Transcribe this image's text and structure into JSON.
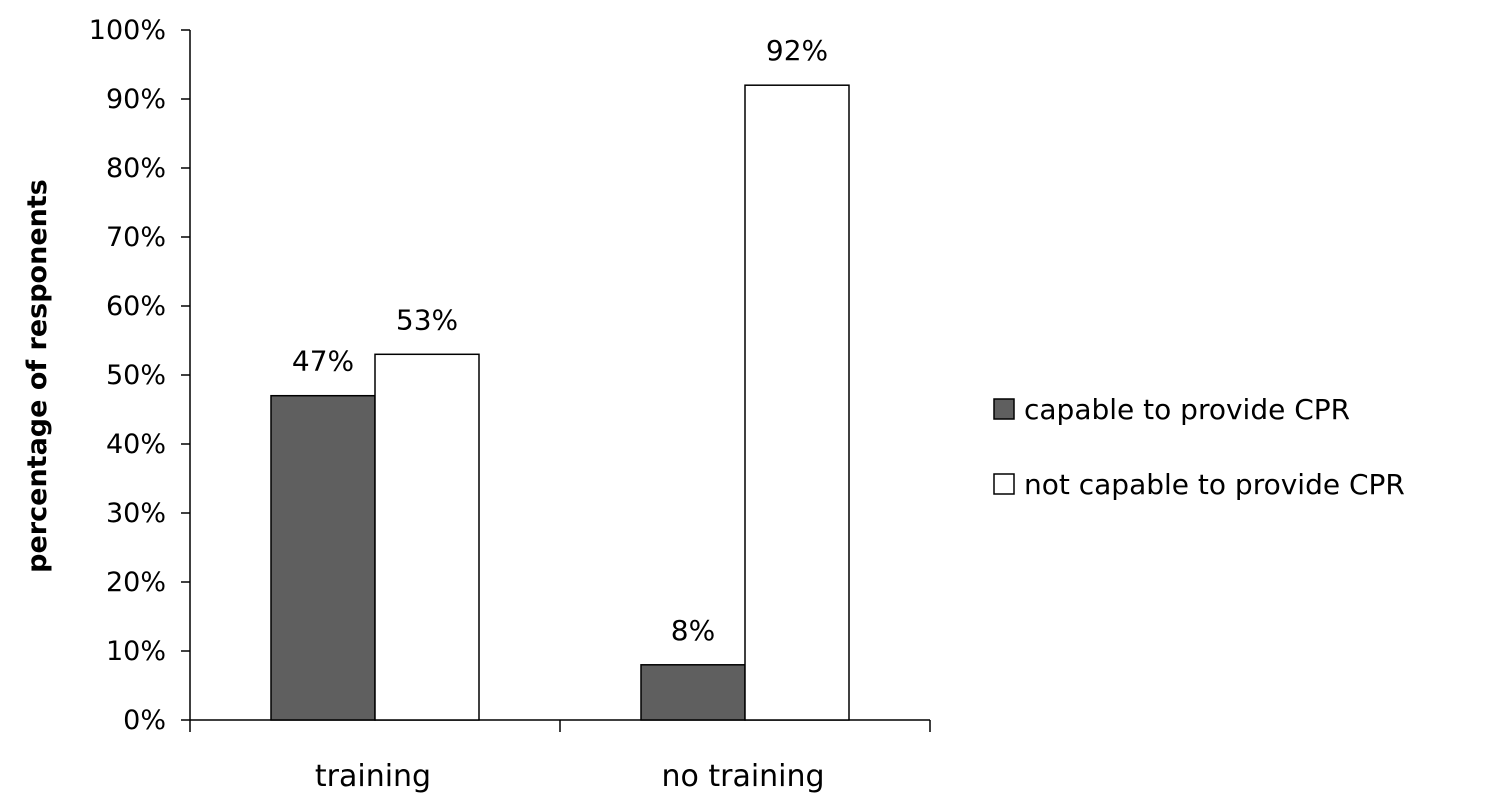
{
  "chart_data": {
    "type": "bar",
    "categories": [
      "training",
      "no training"
    ],
    "series": [
      {
        "name": "capable to provide CPR",
        "values": [
          47,
          8
        ],
        "color": "#5f5f5f"
      },
      {
        "name": "not capable to provide CPR",
        "values": [
          53,
          92
        ],
        "color": "#ffffff"
      }
    ],
    "data_labels": [
      [
        "47%",
        "8%"
      ],
      [
        "53%",
        "92%"
      ]
    ],
    "ylabel": "percentage of responents",
    "xlabel": "",
    "ylim": [
      0,
      100
    ],
    "ytick_values": [
      0,
      10,
      20,
      30,
      40,
      50,
      60,
      70,
      80,
      90,
      100
    ],
    "ytick_labels": [
      "0%",
      "10%",
      "20%",
      "30%",
      "40%",
      "50%",
      "60%",
      "70%",
      "80%",
      "90%",
      "100%"
    ],
    "grid": false,
    "legend_position": "right",
    "border_color": "#000000"
  }
}
